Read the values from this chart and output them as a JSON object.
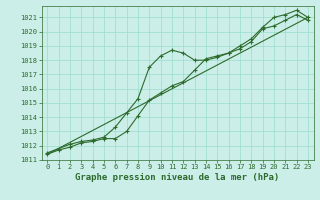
{
  "bg_color": "#cceee8",
  "grid_color": "#99ddcc",
  "line_color": "#2d6b2d",
  "x_label": "Graphe pression niveau de la mer (hPa)",
  "xlim": [
    -0.5,
    23.5
  ],
  "ylim": [
    1011,
    1021.8
  ],
  "yticks": [
    1011,
    1012,
    1013,
    1014,
    1015,
    1016,
    1017,
    1018,
    1019,
    1020,
    1021
  ],
  "xticks": [
    0,
    1,
    2,
    3,
    4,
    5,
    6,
    7,
    8,
    9,
    10,
    11,
    12,
    13,
    14,
    15,
    16,
    17,
    18,
    19,
    20,
    21,
    22,
    23
  ],
  "line1_x": [
    0,
    1,
    2,
    3,
    4,
    5,
    6,
    7,
    8,
    9,
    10,
    11,
    12,
    13,
    14,
    15,
    16,
    17,
    18,
    19,
    20,
    21,
    22,
    23
  ],
  "line1_y": [
    1011.5,
    1011.8,
    1012.1,
    1012.3,
    1012.4,
    1012.6,
    1013.3,
    1014.3,
    1015.3,
    1017.5,
    1018.3,
    1018.7,
    1018.5,
    1018.0,
    1018.0,
    1018.2,
    1018.5,
    1019.0,
    1019.5,
    1020.3,
    1021.0,
    1021.2,
    1021.5,
    1021.0
  ],
  "line2_x": [
    0,
    1,
    2,
    3,
    4,
    5,
    6,
    7,
    8,
    9,
    10,
    11,
    12,
    13,
    14,
    15,
    16,
    17,
    18,
    19,
    20,
    21,
    22,
    23
  ],
  "line2_y": [
    1011.4,
    1011.7,
    1011.9,
    1012.2,
    1012.3,
    1012.5,
    1012.5,
    1013.0,
    1014.1,
    1015.2,
    1015.7,
    1016.2,
    1016.5,
    1017.3,
    1018.1,
    1018.3,
    1018.5,
    1018.8,
    1019.3,
    1020.2,
    1020.4,
    1020.8,
    1021.2,
    1020.8
  ],
  "line3_x": [
    0,
    23
  ],
  "line3_y": [
    1011.4,
    1021.0
  ],
  "marker_size": 2.5,
  "line_width": 0.8,
  "tick_fontsize": 5.0,
  "label_fontsize": 6.5
}
